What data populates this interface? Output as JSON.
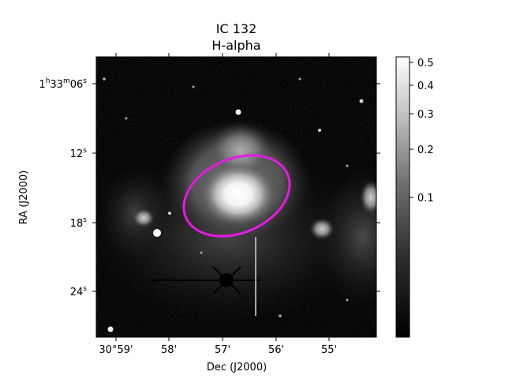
{
  "figure": {
    "title_line1": "IC 132",
    "title_line2": "H-alpha",
    "xlabel": "Dec (J2000)",
    "ylabel": "RA (J2000)",
    "x_ticks": [
      "30°59'",
      "58'",
      "57'",
      "56'",
      "55'"
    ],
    "y_ticks": [
      {
        "h": "1",
        "m": "33",
        "s": "06",
        "full": true
      },
      {
        "s": "12",
        "full": false
      },
      {
        "s": "18",
        "full": false
      },
      {
        "s": "24",
        "full": false
      }
    ],
    "colorbar": {
      "ticks": [
        "0.5",
        "0.4",
        "0.3",
        "0.2",
        "0.1"
      ],
      "colormap": "gray"
    },
    "overlay": {
      "shape": "ellipse",
      "color": "#e619e6"
    }
  }
}
